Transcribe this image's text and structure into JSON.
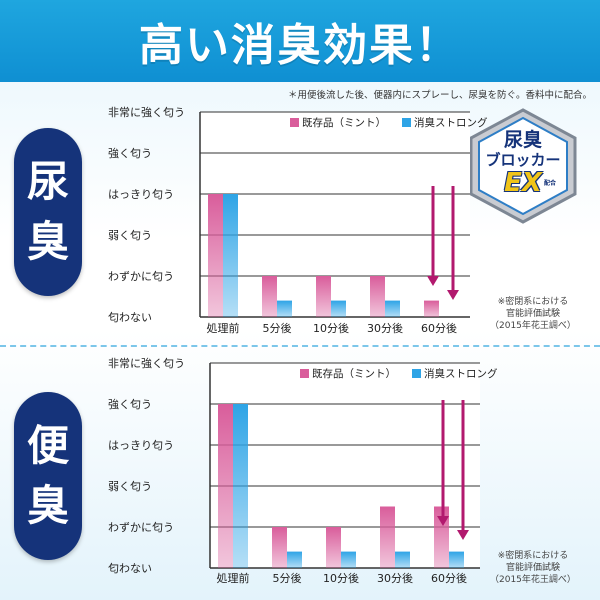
{
  "header": {
    "title": "高い消臭効果！"
  },
  "note": "＊用便後流した後、便器内にスプレーし、尿臭を防ぐ。香料中に配合。",
  "badge": {
    "line1": "尿臭",
    "line2": "ブロッカー",
    "line3": "EX",
    "sub": "配合"
  },
  "colors": {
    "header": "#1fa6df",
    "pill": "#15337a",
    "mint": "#d95d9b",
    "strong": "#2ea4e6",
    "arrow": "#b2196e",
    "grid": "#333333"
  },
  "sections": [
    {
      "label_chars": [
        "尿",
        "臭"
      ]
    },
    {
      "label_chars": [
        "便",
        "臭"
      ]
    }
  ],
  "chart_data": [
    {
      "type": "bar",
      "title": "",
      "xlabel": "",
      "ylabel": "",
      "y_levels": [
        "匂わない",
        "わずかに匂う",
        "弱く匂う",
        "はっきり匂う",
        "強く匂う",
        "非常に強く匂う"
      ],
      "ylim": [
        0,
        5
      ],
      "categories": [
        "処理前",
        "5分後",
        "10分後",
        "30分後",
        "60分後"
      ],
      "series": [
        {
          "name": "既存品（ミント）",
          "color": "#d95d9b",
          "values": [
            3.0,
            1.0,
            1.0,
            1.0,
            0.4
          ]
        },
        {
          "name": "消臭ストロング",
          "color": "#2ea4e6",
          "values": [
            3.0,
            0.4,
            0.4,
            0.4,
            0.0
          ]
        }
      ],
      "grid": true,
      "legend": "top-right",
      "footnote": [
        "※密閉系における",
        "官能評価試験",
        "（2015年花王調べ）"
      ]
    },
    {
      "type": "bar",
      "title": "",
      "xlabel": "",
      "ylabel": "",
      "y_levels": [
        "匂わない",
        "わずかに匂う",
        "弱く匂う",
        "はっきり匂う",
        "強く匂う",
        "非常に強く匂う"
      ],
      "ylim": [
        0,
        5
      ],
      "categories": [
        "処理前",
        "5分後",
        "10分後",
        "30分後",
        "60分後"
      ],
      "series": [
        {
          "name": "既存品（ミント）",
          "color": "#d95d9b",
          "values": [
            4.0,
            1.0,
            1.0,
            1.5,
            1.5
          ]
        },
        {
          "name": "消臭ストロング",
          "color": "#2ea4e6",
          "values": [
            4.0,
            0.4,
            0.4,
            0.4,
            0.4
          ]
        }
      ],
      "grid": true,
      "legend": "top-right",
      "footnote": [
        "※密閉系における",
        "官能評価試験",
        "（2015年花王調べ）"
      ]
    }
  ]
}
